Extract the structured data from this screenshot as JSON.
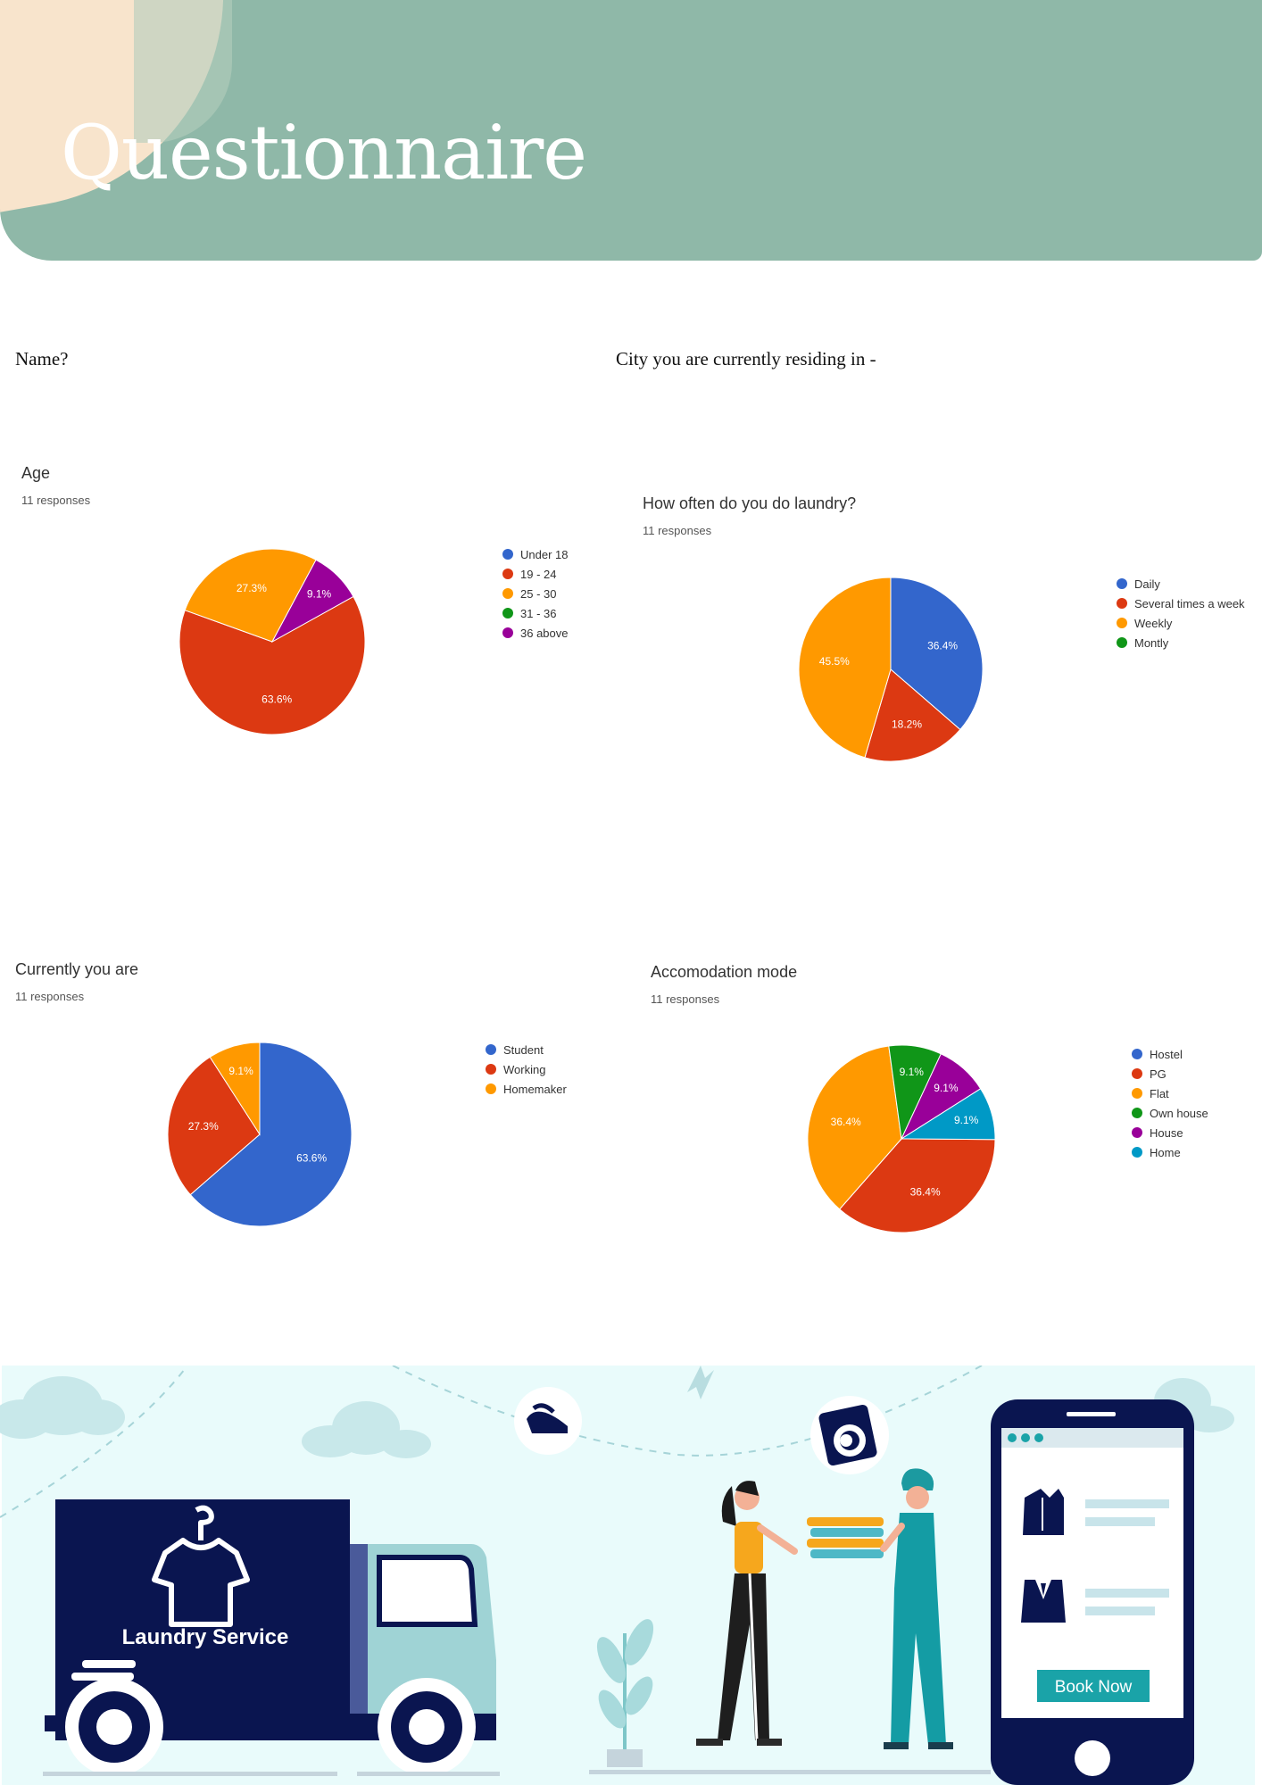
{
  "header": {
    "title": "Questionnaire"
  },
  "questions": {
    "name_label": "Name?",
    "city_label": "City you are currently residing in -"
  },
  "colors": {
    "header_bg": "#8fb8a8",
    "blob": "#f8e4cc",
    "navy": "#0a1550",
    "teal": "#0aa1a8"
  },
  "chart_data": [
    {
      "type": "pie",
      "title": "Age",
      "subtitle": "11 responses",
      "legend": [
        "Under 18",
        "19 - 24",
        "25 - 30",
        "31 - 36",
        "36 above"
      ],
      "colors": [
        "#3366cc",
        "#dc3912",
        "#ff9900",
        "#109618",
        "#990099"
      ],
      "values": [
        0,
        63.6,
        27.3,
        0,
        9.1
      ],
      "labels": [
        "",
        "63.6%",
        "27.3%",
        "",
        "9.1%"
      ]
    },
    {
      "type": "pie",
      "title": "How often do you do laundry?",
      "subtitle": "11 responses",
      "legend": [
        "Daily",
        "Several times a week",
        "Weekly",
        "Montly"
      ],
      "colors": [
        "#3366cc",
        "#dc3912",
        "#ff9900",
        "#109618"
      ],
      "values": [
        36.4,
        18.2,
        45.5,
        0
      ],
      "labels": [
        "36.4%",
        "18.2%",
        "45.5%",
        ""
      ]
    },
    {
      "type": "pie",
      "title": "Currently you are",
      "subtitle": "11 responses",
      "legend": [
        "Student",
        "Working",
        "Homemaker"
      ],
      "colors": [
        "#3366cc",
        "#dc3912",
        "#ff9900"
      ],
      "values": [
        63.6,
        27.3,
        9.1
      ],
      "labels": [
        "63.6%",
        "27.3%",
        "9.1%"
      ]
    },
    {
      "type": "pie",
      "title": "Accomodation mode",
      "subtitle": "11 responses",
      "legend": [
        "Hostel",
        "PG",
        "Flat",
        "Own house",
        "House",
        "Home"
      ],
      "colors": [
        "#3366cc",
        "#dc3912",
        "#ff9900",
        "#109618",
        "#990099",
        "#0099c6"
      ],
      "values": [
        0,
        36.4,
        36.4,
        9.1,
        9.1,
        9.1
      ],
      "labels": [
        "",
        "36.4%",
        "36.4%",
        "9.1%",
        "9.1%",
        "9.1%"
      ]
    }
  ],
  "illustration": {
    "truck_label": "Laundry Service",
    "book_button": "Book Now"
  }
}
